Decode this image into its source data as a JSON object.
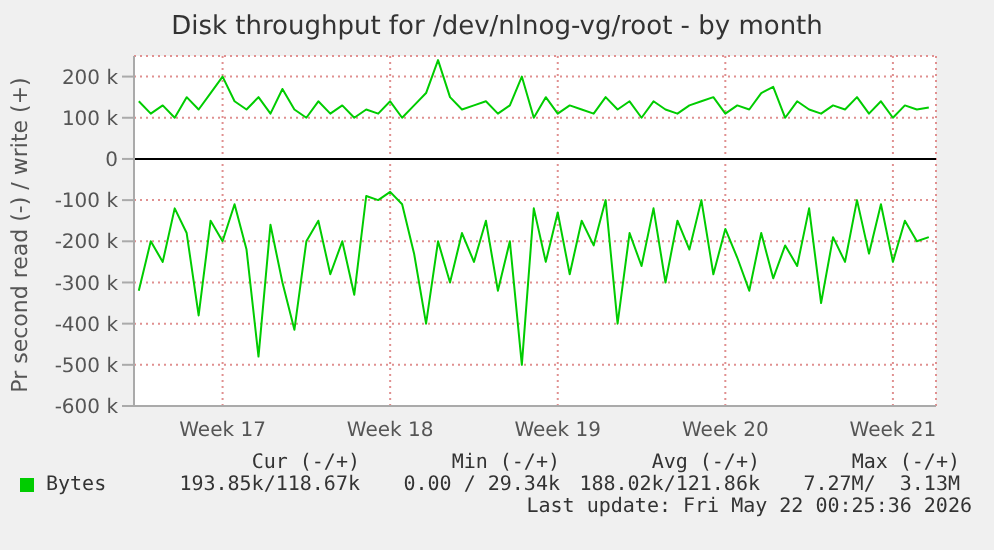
{
  "chart_data": {
    "type": "line",
    "title": "Disk throughput for /dev/nlnog-vg/root - by month",
    "ylabel": "Pr second read (-) / write (+)",
    "x": [
      "2026-04-20T00:00",
      "2026-04-20T12:00",
      "2026-04-21T00:00",
      "2026-04-21T12:00",
      "2026-04-22T00:00",
      "2026-04-22T12:00",
      "2026-04-23T00:00",
      "2026-04-23T12:00",
      "2026-04-24T00:00",
      "2026-04-24T12:00",
      "2026-04-25T00:00",
      "2026-04-25T12:00",
      "2026-04-26T00:00",
      "2026-04-26T12:00",
      "2026-04-27T00:00",
      "2026-04-27T12:00",
      "2026-04-28T00:00",
      "2026-04-28T12:00",
      "2026-04-29T00:00",
      "2026-04-29T12:00",
      "2026-04-30T00:00",
      "2026-04-30T12:00",
      "2026-05-01T00:00",
      "2026-05-01T12:00",
      "2026-05-02T00:00",
      "2026-05-02T12:00",
      "2026-05-03T00:00",
      "2026-05-03T12:00",
      "2026-05-04T00:00",
      "2026-05-04T12:00",
      "2026-05-05T00:00",
      "2026-05-05T12:00",
      "2026-05-06T00:00",
      "2026-05-06T12:00",
      "2026-05-07T00:00",
      "2026-05-07T12:00",
      "2026-05-08T00:00",
      "2026-05-08T12:00",
      "2026-05-09T00:00",
      "2026-05-09T12:00",
      "2026-05-10T00:00",
      "2026-05-10T12:00",
      "2026-05-11T00:00",
      "2026-05-11T12:00",
      "2026-05-12T00:00",
      "2026-05-12T12:00",
      "2026-05-13T00:00",
      "2026-05-13T12:00",
      "2026-05-14T00:00",
      "2026-05-14T12:00",
      "2026-05-15T00:00",
      "2026-05-15T12:00",
      "2026-05-16T00:00",
      "2026-05-16T12:00",
      "2026-05-17T00:00",
      "2026-05-17T12:00",
      "2026-05-18T00:00",
      "2026-05-18T12:00",
      "2026-05-19T00:00",
      "2026-05-19T12:00",
      "2026-05-20T00:00",
      "2026-05-20T12:00",
      "2026-05-21T00:00",
      "2026-05-21T12:00",
      "2026-05-22T00:00",
      "2026-05-22T12:00",
      "2026-05-23T00:00"
    ],
    "series": [
      {
        "name": "Bytes",
        "color": "#00cc00",
        "values": [
          -320000,
          -200000,
          -250000,
          -120000,
          -180000,
          -380000,
          -150000,
          -200000,
          -110000,
          -220000,
          -480000,
          -160000,
          -300000,
          -415000,
          -200000,
          -150000,
          -280000,
          -200000,
          -330000,
          -90000,
          -100000,
          -80000,
          -110000,
          -230000,
          -400000,
          -200000,
          -300000,
          -180000,
          -250000,
          -150000,
          -320000,
          -200000,
          -500000,
          -120000,
          -250000,
          -130000,
          -280000,
          -150000,
          -210000,
          -100000,
          -400000,
          -180000,
          -260000,
          -120000,
          -300000,
          -150000,
          -220000,
          -100000,
          -280000,
          -170000,
          -240000,
          -320000,
          -180000,
          -290000,
          -210000,
          -260000,
          -120000,
          -350000,
          -190000,
          -250000,
          -100000,
          -230000,
          -110000,
          -250000,
          -150000,
          -200000,
          -190000
        ]
      },
      {
        "color": "#00cc00",
        "values": [
          140000,
          110000,
          130000,
          100000,
          150000,
          120000,
          160000,
          200000,
          140000,
          120000,
          150000,
          110000,
          170000,
          120000,
          100000,
          140000,
          110000,
          130000,
          100000,
          120000,
          110000,
          140000,
          100000,
          130000,
          160000,
          240000,
          150000,
          120000,
          130000,
          140000,
          110000,
          130000,
          200000,
          100000,
          150000,
          110000,
          130000,
          120000,
          110000,
          150000,
          120000,
          140000,
          100000,
          140000,
          120000,
          110000,
          130000,
          140000,
          150000,
          110000,
          130000,
          120000,
          160000,
          175000,
          100000,
          140000,
          120000,
          110000,
          130000,
          120000,
          150000,
          110000,
          140000,
          100000,
          130000,
          120000,
          125000
        ]
      }
    ],
    "xlim": [
      "2026-04-19T19:12",
      "2026-05-23T07:12"
    ],
    "xticks": [
      {
        "value": "2026-04-23T12:00",
        "label": "Week 17"
      },
      {
        "value": "2026-04-30T12:00",
        "label": "Week 18"
      },
      {
        "value": "2026-05-07T12:00",
        "label": "Week 19"
      },
      {
        "value": "2026-05-14T12:00",
        "label": "Week 20"
      },
      {
        "value": "2026-05-21T12:00",
        "label": "Week 21"
      }
    ],
    "ylim": [
      -600000,
      250000
    ],
    "yticks": [
      {
        "value": -600000,
        "label": "-600 k"
      },
      {
        "value": -500000,
        "label": "-500 k"
      },
      {
        "value": -400000,
        "label": "-400 k"
      },
      {
        "value": -300000,
        "label": "-300 k"
      },
      {
        "value": -200000,
        "label": "-200 k"
      },
      {
        "value": -100000,
        "label": "-100 k"
      },
      0,
      {
        "value": 100000,
        "label": "100 k"
      },
      {
        "value": 200000,
        "label": "200 k"
      }
    ],
    "ref_lines": [
      {
        "axis": "y",
        "value": 0,
        "color": "#000000"
      }
    ],
    "grid": true,
    "line_style": "solid",
    "marker": "none",
    "legend": "bottom left",
    "annotations": [
      "Cur (-/+)",
      "Min (-/+)",
      "Avg (-/+)",
      "Max (-/+)",
      "193.85k/118.67k",
      "0.00 / 29.34k",
      "188.02k/121.86k",
      "7.27M/  3.13M",
      "Last update: Fri May 22 00:25:36 2026"
    ]
  }
}
